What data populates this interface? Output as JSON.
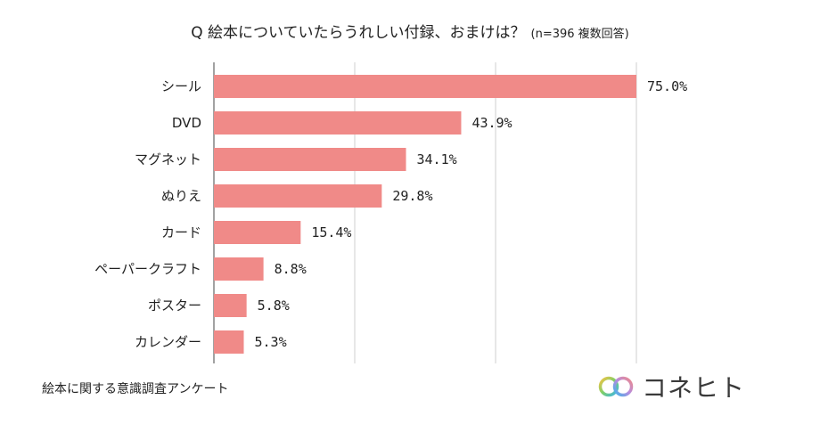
{
  "chart_data": {
    "type": "bar",
    "orientation": "horizontal",
    "title": "Q 絵本についていたらうれしい付録、おまけは？",
    "title_note": "(n=396 複数回答)",
    "categories": [
      "シール",
      "DVD",
      "マグネット",
      "ぬりえ",
      "カード",
      "ペーパークラフト",
      "ポスター",
      "カレンダー"
    ],
    "values": [
      75.0,
      43.9,
      34.1,
      29.8,
      15.4,
      8.8,
      5.8,
      5.3
    ],
    "data_labels": [
      "75.0%",
      "43.9%",
      "34.1%",
      "29.8%",
      "15.4%",
      "8.8%",
      "5.8%",
      "5.3%"
    ],
    "xlim": [
      0,
      75
    ],
    "grid": true,
    "bar_color": "#f08a88"
  },
  "footer": {
    "source": "絵本に関する意識調査アンケート",
    "brand_name": "コネヒト",
    "brand_logo": "rainbow-rings-logo"
  }
}
